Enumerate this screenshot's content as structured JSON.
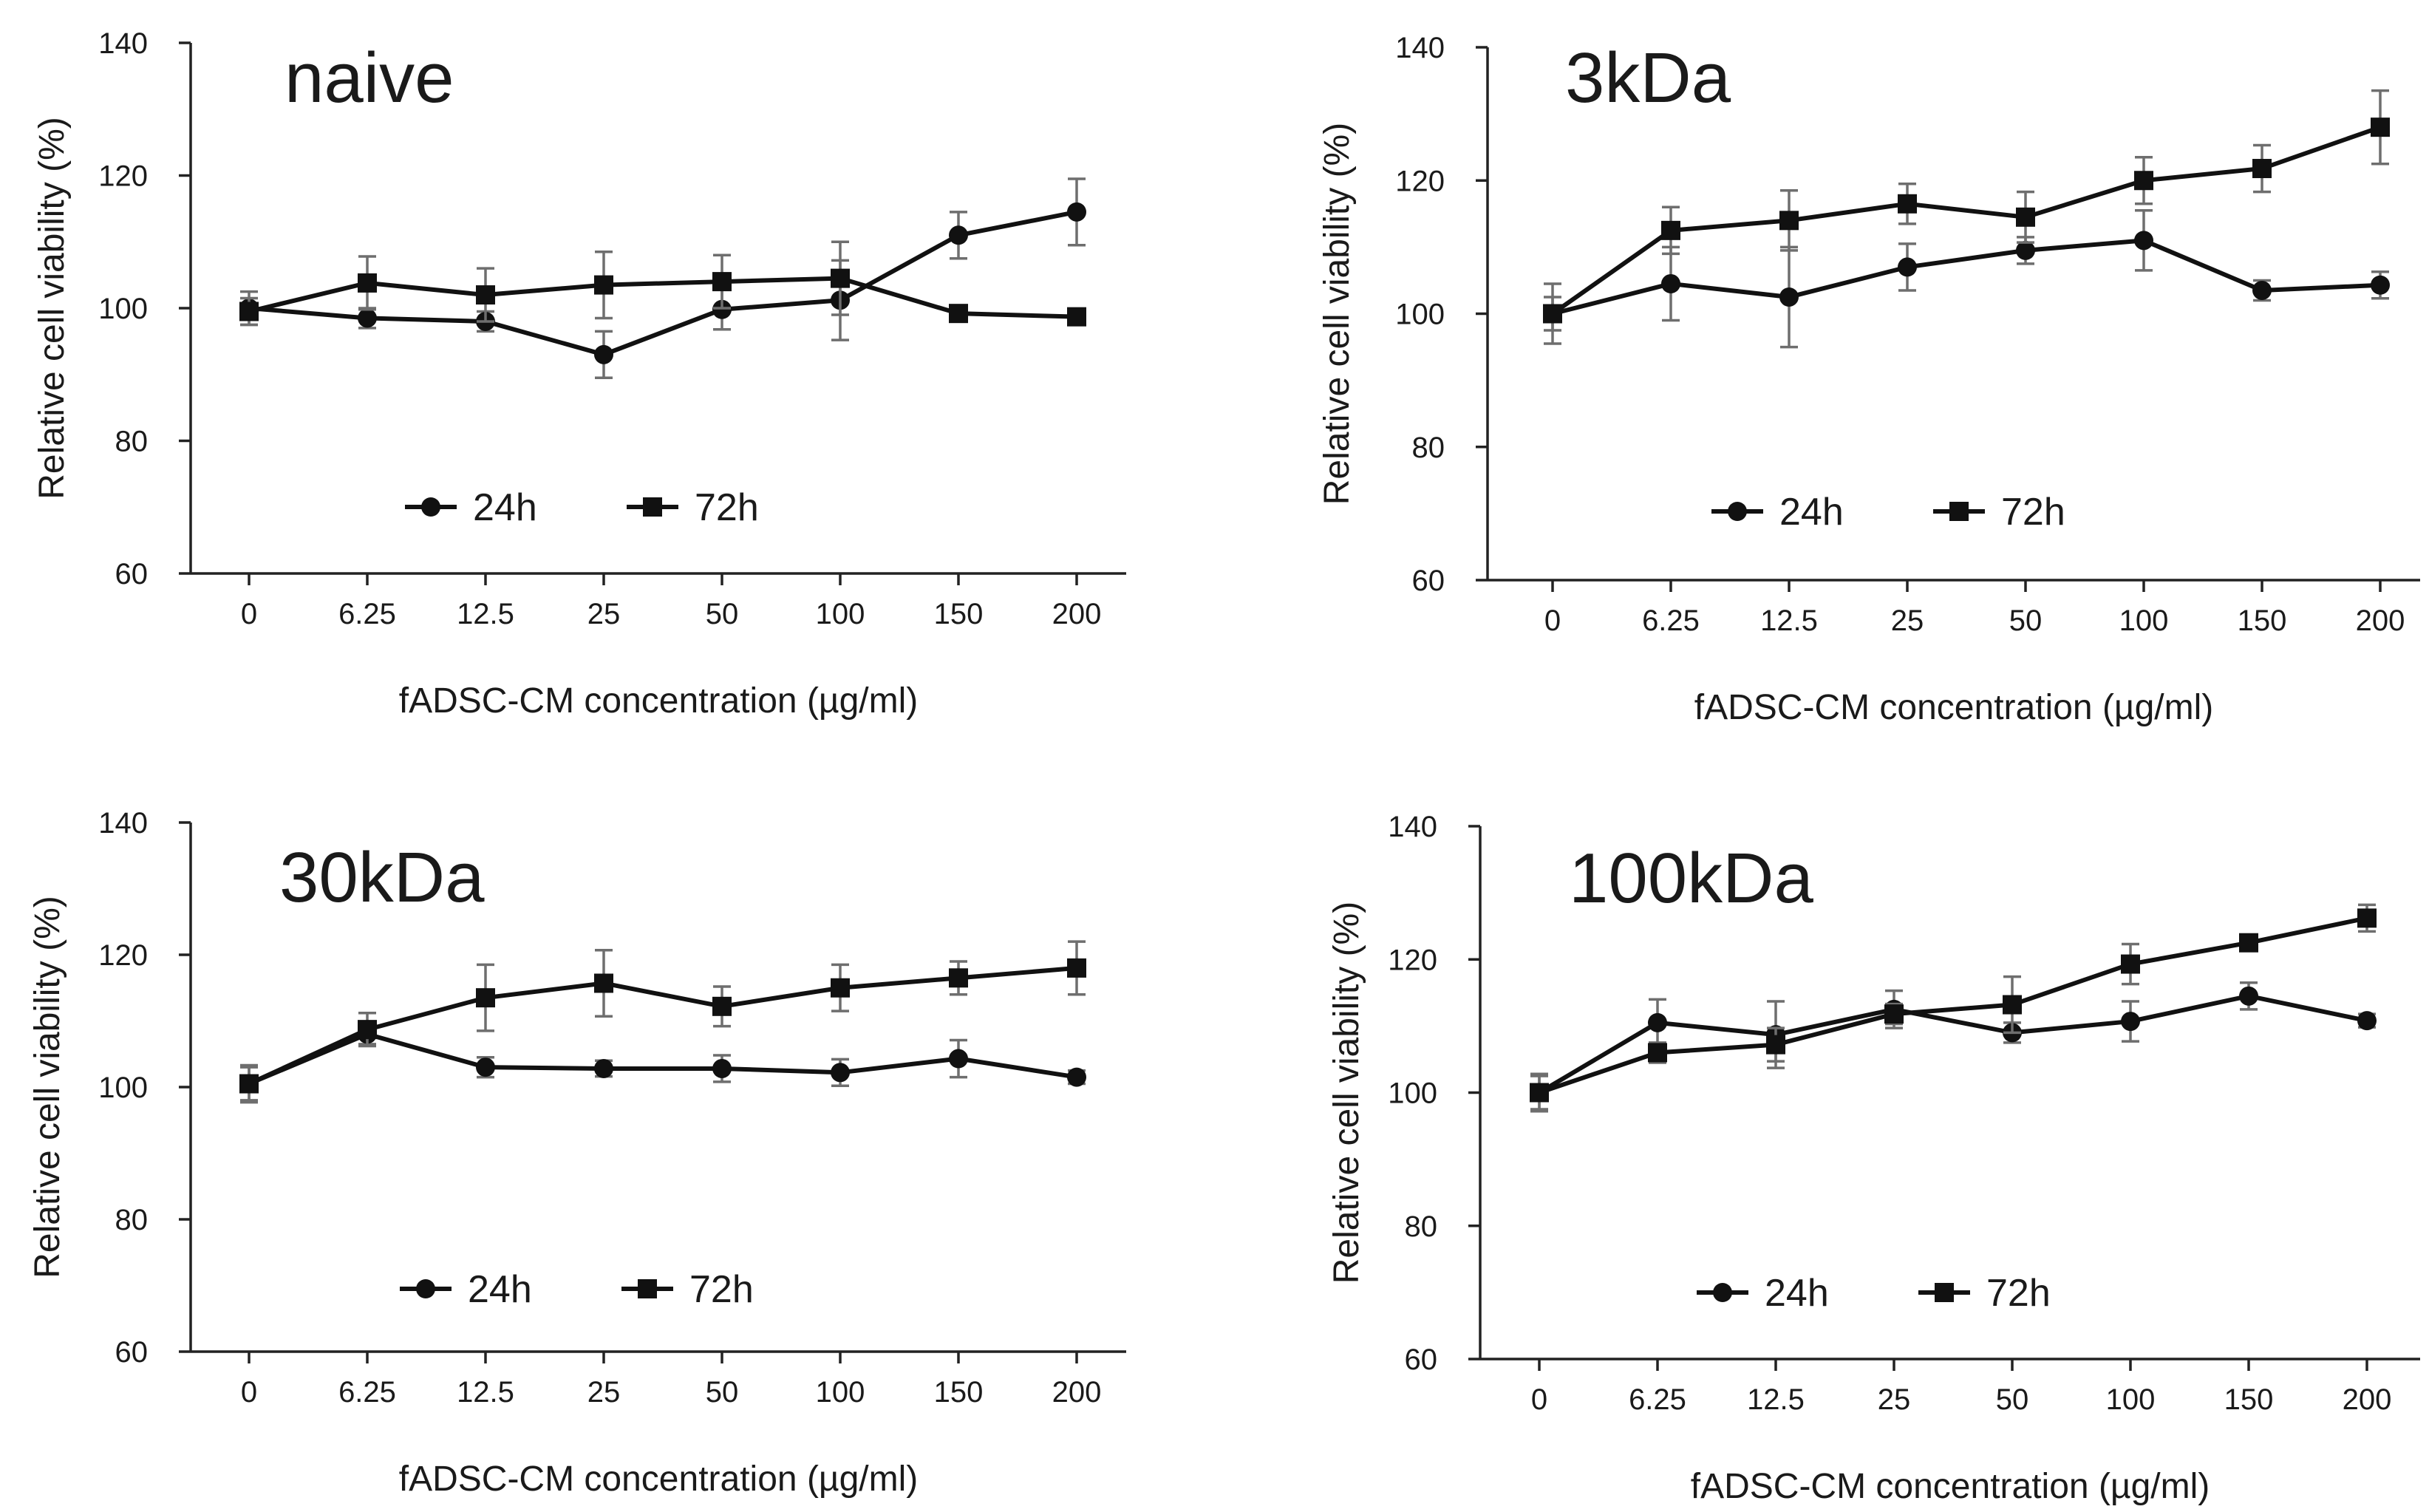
{
  "figure": {
    "x_categories": [
      "0",
      "6.25",
      "12.5",
      "25",
      "50",
      "100",
      "150",
      "200"
    ],
    "xlabel": "fADSC-CM concentration (µg/ml)",
    "ylabel": "Relative cell viability (%)",
    "ylim": [
      60,
      140
    ],
    "yticks": [
      60,
      80,
      100,
      120,
      140
    ],
    "legend": [
      "24h",
      "72h"
    ]
  },
  "chart_data": [
    {
      "type": "line",
      "title": "naive",
      "categories": [
        "0",
        "6.25",
        "12.5",
        "25",
        "50",
        "100",
        "150",
        "200"
      ],
      "xlabel": "fADSC-CM concentration (µg/ml)",
      "ylabel": "Relative cell viability (%)",
      "ylim": [
        60,
        140
      ],
      "legend_position": "bottom-left",
      "series": [
        {
          "name": "24h",
          "marker": "circle",
          "values": [
            100,
            98.5,
            98,
            93,
            99.8,
            101.2,
            111,
            114.5
          ],
          "errors": [
            2.5,
            1.5,
            1.5,
            3.5,
            3.0,
            6.0,
            3.5,
            5.0
          ]
        },
        {
          "name": "72h",
          "marker": "square",
          "values": [
            99.5,
            103.8,
            102,
            103.5,
            104,
            104.5,
            99.2,
            98.7
          ],
          "errors": [
            2.0,
            4.0,
            4.0,
            5.0,
            4.0,
            5.5,
            1.0,
            0.8
          ]
        }
      ]
    },
    {
      "type": "line",
      "title": "3kDa",
      "categories": [
        "0",
        "6.25",
        "12.5",
        "25",
        "50",
        "100",
        "150",
        "200"
      ],
      "xlabel": "fADSC-CM concentration (µg/ml)",
      "ylabel": "Relative cell viability (%)",
      "ylim": [
        60,
        140
      ],
      "legend_position": "bottom-left",
      "series": [
        {
          "name": "24h",
          "marker": "circle",
          "values": [
            100,
            104.5,
            102.5,
            107,
            109.5,
            111,
            103.5,
            104.3
          ],
          "errors": [
            4.5,
            5.5,
            7.5,
            3.5,
            2.0,
            4.5,
            1.5,
            2.0
          ]
        },
        {
          "name": "72h",
          "marker": "square",
          "values": [
            100,
            112.5,
            114,
            116.5,
            114.5,
            120,
            121.8,
            128
          ],
          "errors": [
            2.5,
            3.5,
            4.5,
            3.0,
            3.8,
            3.5,
            3.5,
            5.5
          ]
        }
      ]
    },
    {
      "type": "line",
      "title": "30kDa",
      "categories": [
        "0",
        "6.25",
        "12.5",
        "25",
        "50",
        "100",
        "150",
        "200"
      ],
      "xlabel": "fADSC-CM concentration (µg/ml)",
      "ylabel": "Relative cell viability (%)",
      "ylim": [
        60,
        140
      ],
      "legend_position": "bottom-left",
      "series": [
        {
          "name": "24h",
          "marker": "circle",
          "values": [
            100.5,
            108,
            103,
            102.8,
            102.8,
            102.2,
            104.3,
            101.5
          ],
          "errors": [
            2.8,
            1.5,
            1.5,
            1.2,
            2.0,
            2.0,
            2.8,
            1.0
          ]
        },
        {
          "name": "72h",
          "marker": "square",
          "values": [
            100.5,
            108.7,
            113.5,
            115.7,
            112.2,
            115,
            116.5,
            118
          ],
          "errors": [
            2.5,
            2.5,
            5.0,
            5.0,
            3.0,
            3.5,
            2.5,
            4.0
          ]
        }
      ]
    },
    {
      "type": "line",
      "title": "100kDa",
      "categories": [
        "0",
        "6.25",
        "12.5",
        "25",
        "50",
        "100",
        "150",
        "200"
      ],
      "xlabel": "fADSC-CM concentration (µg/ml)",
      "ylabel": "Relative cell viability (%)",
      "ylim": [
        60,
        140
      ],
      "legend_position": "bottom-left",
      "series": [
        {
          "name": "24h",
          "marker": "circle",
          "values": [
            100,
            110.5,
            108.7,
            112.5,
            109,
            110.7,
            114.5,
            110.8
          ],
          "errors": [
            2.8,
            3.5,
            5.0,
            2.8,
            1.5,
            3.0,
            2.0,
            1.0
          ]
        },
        {
          "name": "72h",
          "marker": "square",
          "values": [
            100,
            106,
            107.2,
            111.8,
            113.2,
            119.3,
            122.5,
            126.2
          ],
          "errors": [
            2.5,
            1.5,
            2.5,
            1.5,
            4.2,
            3.0,
            1.0,
            2.0
          ]
        }
      ]
    }
  ]
}
